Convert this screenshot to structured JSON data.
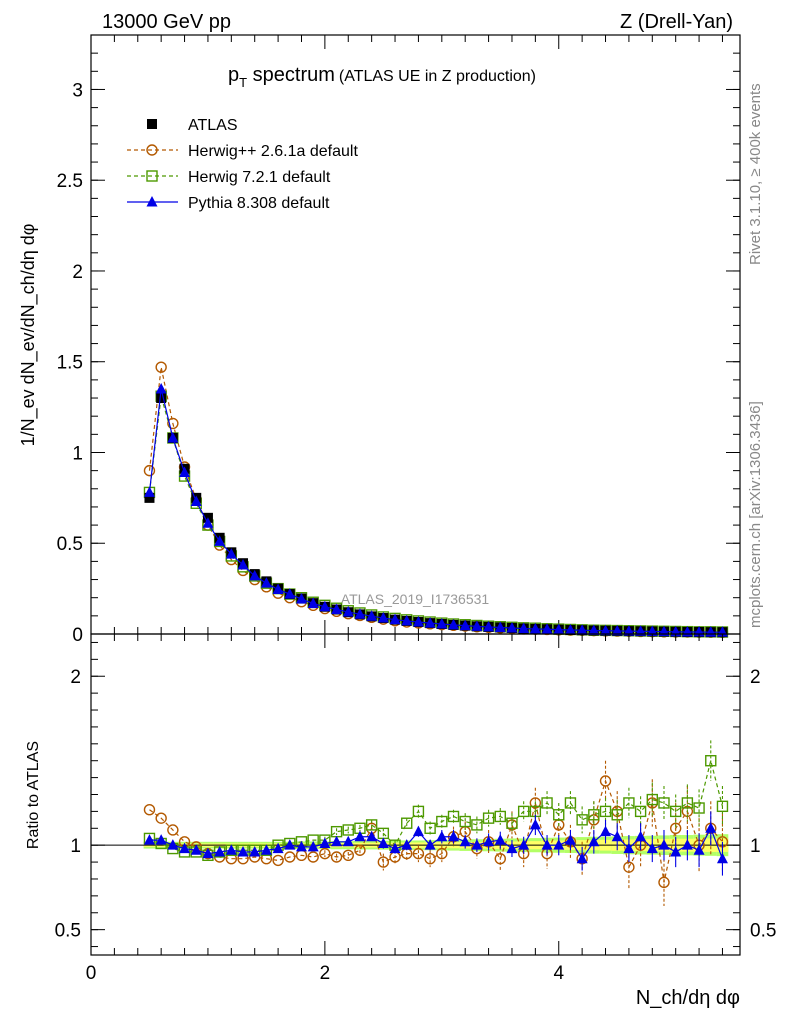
{
  "header": {
    "left": "13000 GeV pp",
    "right": "Z (Drell-Yan)"
  },
  "side": {
    "rivet": "Rivet 3.1.10, ≥ 400k events",
    "mcplots": "mcplots.cern.ch [arXiv:1306.3436]"
  },
  "colors": {
    "atlas": "#000000",
    "herwig_pp": "#b35900",
    "herwig7": "#4d9900",
    "pythia": "#0000e6",
    "band_inner": "#ffff66",
    "band_outer": "#b3ff66"
  },
  "chart_data": [
    {
      "panel": "main",
      "type": "line",
      "title_main": "p",
      "title_sub": "T",
      "title_rest": " spectrum",
      "title_small": "(ATLAS UE in Z production)",
      "ylabel": "1/N_ev dN_ev/dN_ch/dη dφ",
      "ylim": [
        0,
        3.3
      ],
      "yticks": [
        0,
        0.5,
        1,
        1.5,
        2,
        2.5,
        3
      ],
      "ytick_labels": [
        "0",
        "0.5",
        "1",
        "1.5",
        "2",
        "2.5",
        "3"
      ],
      "watermark": "ATLAS_2019_I1736531",
      "legend": [
        {
          "key": "atlas",
          "label": "ATLAS"
        },
        {
          "key": "herwig_pp",
          "label": "Herwig++ 2.6.1a default"
        },
        {
          "key": "herwig7",
          "label": "Herwig 7.2.1 default"
        },
        {
          "key": "pythia",
          "label": "Pythia 8.308 default"
        }
      ],
      "x": [
        0.5,
        0.6,
        0.7,
        0.8,
        0.9,
        1.0,
        1.1,
        1.2,
        1.3,
        1.4,
        1.5,
        1.6,
        1.7,
        1.8,
        1.9,
        2.0,
        2.1,
        2.2,
        2.3,
        2.4,
        2.5,
        2.6,
        2.7,
        2.8,
        2.9,
        3.0,
        3.1,
        3.2,
        3.3,
        3.4,
        3.5,
        3.6,
        3.7,
        3.8,
        3.9,
        4.0,
        4.1,
        4.2,
        4.3,
        4.4,
        4.5,
        4.6,
        4.7,
        4.8,
        4.9,
        5.0,
        5.1,
        5.2,
        5.3,
        5.4
      ],
      "series": [
        {
          "key": "atlas",
          "name": "ATLAS",
          "values": [
            0.75,
            1.3,
            1.08,
            0.91,
            0.75,
            0.64,
            0.53,
            0.45,
            0.39,
            0.33,
            0.29,
            0.25,
            0.22,
            0.195,
            0.17,
            0.15,
            0.135,
            0.12,
            0.108,
            0.097,
            0.088,
            0.079,
            0.072,
            0.066,
            0.06,
            0.055,
            0.05,
            0.046,
            0.042,
            0.039,
            0.036,
            0.033,
            0.03,
            0.028,
            0.026,
            0.024,
            0.022,
            0.021,
            0.019,
            0.018,
            0.017,
            0.016,
            0.015,
            0.014,
            0.013,
            0.012,
            0.011,
            0.011,
            0.01,
            0.01
          ]
        },
        {
          "key": "herwig_pp",
          "name": "Herwig++ 2.6.1a default",
          "values": [
            0.9,
            1.47,
            1.16,
            0.92,
            0.74,
            0.6,
            0.49,
            0.41,
            0.35,
            0.3,
            0.26,
            0.225,
            0.2,
            0.178,
            0.158,
            0.14,
            0.125,
            0.112,
            0.102,
            0.092,
            0.082,
            0.073,
            0.066,
            0.061,
            0.056,
            0.052,
            0.048,
            0.044,
            0.04,
            0.037,
            0.034,
            0.031,
            0.028,
            0.026,
            0.025,
            0.023,
            0.021,
            0.02,
            0.018,
            0.017,
            0.016,
            0.015,
            0.014,
            0.013,
            0.012,
            0.011,
            0.011,
            0.01,
            0.01,
            0.009
          ]
        },
        {
          "key": "herwig7",
          "name": "Herwig 7.2.1 default",
          "values": [
            0.78,
            1.31,
            1.08,
            0.87,
            0.72,
            0.6,
            0.51,
            0.43,
            0.37,
            0.32,
            0.28,
            0.25,
            0.22,
            0.2,
            0.175,
            0.158,
            0.142,
            0.128,
            0.116,
            0.105,
            0.094,
            0.086,
            0.078,
            0.072,
            0.066,
            0.06,
            0.055,
            0.051,
            0.047,
            0.043,
            0.04,
            0.037,
            0.034,
            0.032,
            0.029,
            0.027,
            0.025,
            0.023,
            0.021,
            0.02,
            0.019,
            0.018,
            0.017,
            0.016,
            0.015,
            0.014,
            0.013,
            0.012,
            0.012,
            0.011
          ]
        },
        {
          "key": "pythia",
          "name": "Pythia 8.308 default",
          "values": [
            0.78,
            1.35,
            1.08,
            0.89,
            0.73,
            0.61,
            0.51,
            0.44,
            0.38,
            0.32,
            0.28,
            0.245,
            0.22,
            0.193,
            0.168,
            0.15,
            0.135,
            0.121,
            0.109,
            0.098,
            0.088,
            0.079,
            0.072,
            0.066,
            0.06,
            0.055,
            0.05,
            0.046,
            0.042,
            0.039,
            0.036,
            0.033,
            0.03,
            0.028,
            0.026,
            0.024,
            0.022,
            0.021,
            0.019,
            0.018,
            0.017,
            0.016,
            0.015,
            0.014,
            0.013,
            0.012,
            0.011,
            0.011,
            0.01,
            0.01
          ]
        }
      ]
    },
    {
      "panel": "ratio",
      "type": "line",
      "ylabel": "Ratio to ATLAS",
      "xlabel": "N_ch/dη dφ",
      "xlim": [
        0,
        5.55
      ],
      "xticks": [
        0,
        2,
        4
      ],
      "xtick_labels": [
        "0",
        "2",
        "4"
      ],
      "ylim": [
        0.35,
        2.25
      ],
      "yticks": [
        0.5,
        1,
        2
      ],
      "ytick_labels": [
        "0.5",
        "1",
        "2"
      ],
      "x": [
        0.5,
        0.6,
        0.7,
        0.8,
        0.9,
        1.0,
        1.1,
        1.2,
        1.3,
        1.4,
        1.5,
        1.6,
        1.7,
        1.8,
        1.9,
        2.0,
        2.1,
        2.2,
        2.3,
        2.4,
        2.5,
        2.6,
        2.7,
        2.8,
        2.9,
        3.0,
        3.1,
        3.2,
        3.3,
        3.4,
        3.5,
        3.6,
        3.7,
        3.8,
        3.9,
        4.0,
        4.1,
        4.2,
        4.3,
        4.4,
        4.5,
        4.6,
        4.7,
        4.8,
        4.9,
        5.0,
        5.1,
        5.2,
        5.3,
        5.4
      ],
      "band_inner": [
        0.01,
        0.01,
        0.01,
        0.01,
        0.01,
        0.01,
        0.01,
        0.01,
        0.01,
        0.01,
        0.01,
        0.01,
        0.01,
        0.01,
        0.01,
        0.012,
        0.012,
        0.012,
        0.014,
        0.014,
        0.015,
        0.015,
        0.016,
        0.016,
        0.017,
        0.018,
        0.018,
        0.019,
        0.02,
        0.02,
        0.022,
        0.022,
        0.024,
        0.024,
        0.026,
        0.028,
        0.028,
        0.03,
        0.03,
        0.032,
        0.033,
        0.034,
        0.035,
        0.036,
        0.037,
        0.038,
        0.038,
        0.039,
        0.04,
        0.04
      ],
      "band_outer": [
        0.02,
        0.02,
        0.02,
        0.02,
        0.02,
        0.02,
        0.02,
        0.02,
        0.02,
        0.02,
        0.02,
        0.02,
        0.02,
        0.022,
        0.022,
        0.022,
        0.024,
        0.024,
        0.025,
        0.025,
        0.026,
        0.026,
        0.028,
        0.028,
        0.03,
        0.03,
        0.032,
        0.034,
        0.035,
        0.036,
        0.038,
        0.04,
        0.04,
        0.042,
        0.044,
        0.045,
        0.046,
        0.048,
        0.05,
        0.05,
        0.052,
        0.054,
        0.055,
        0.056,
        0.058,
        0.06,
        0.06,
        0.062,
        0.063,
        0.065
      ],
      "series": [
        {
          "key": "herwig_pp",
          "name": "Herwig++ 2.6.1a default",
          "values": [
            1.21,
            1.16,
            1.09,
            1.02,
            0.99,
            0.95,
            0.93,
            0.92,
            0.92,
            0.93,
            0.92,
            0.91,
            0.93,
            0.94,
            0.93,
            0.95,
            0.93,
            0.94,
            0.97,
            1.1,
            0.9,
            0.93,
            0.95,
            0.95,
            0.92,
            0.95,
            1.05,
            1.08,
            0.98,
            1.02,
            0.92,
            1.12,
            0.95,
            1.25,
            0.95,
            1.12,
            1.02,
            0.92,
            1.15,
            1.38,
            1.2,
            0.87,
            1.0,
            1.25,
            0.78,
            1.1,
            1.2,
            1.0,
            1.1,
            1.02
          ],
          "errors": [
            0.01,
            0.01,
            0.01,
            0.01,
            0.01,
            0.01,
            0.01,
            0.01,
            0.01,
            0.01,
            0.01,
            0.01,
            0.01,
            0.01,
            0.01,
            0.02,
            0.02,
            0.02,
            0.03,
            0.04,
            0.05,
            0.04,
            0.04,
            0.05,
            0.05,
            0.05,
            0.06,
            0.06,
            0.06,
            0.07,
            0.07,
            0.08,
            0.08,
            0.09,
            0.09,
            0.1,
            0.1,
            0.1,
            0.11,
            0.12,
            0.12,
            0.13,
            0.13,
            0.14,
            0.14,
            0.15,
            0.15,
            0.16,
            0.16,
            0.17
          ]
        },
        {
          "key": "herwig7",
          "name": "Herwig 7.2.1 default",
          "values": [
            1.04,
            1.01,
            0.98,
            0.96,
            0.96,
            0.94,
            0.96,
            0.97,
            0.97,
            0.97,
            0.97,
            1.0,
            1.01,
            1.02,
            1.03,
            1.03,
            1.08,
            1.09,
            1.1,
            1.12,
            1.07,
            1.0,
            1.13,
            1.2,
            1.1,
            1.14,
            1.17,
            1.14,
            1.12,
            1.16,
            1.17,
            1.13,
            1.2,
            1.2,
            1.25,
            1.18,
            1.25,
            1.15,
            1.18,
            1.2,
            1.18,
            1.25,
            1.2,
            1.27,
            1.25,
            1.2,
            1.25,
            1.22,
            1.5,
            1.23
          ],
          "errors": [
            0.01,
            0.01,
            0.01,
            0.01,
            0.01,
            0.01,
            0.01,
            0.01,
            0.01,
            0.01,
            0.01,
            0.01,
            0.01,
            0.01,
            0.01,
            0.02,
            0.02,
            0.02,
            0.02,
            0.03,
            0.03,
            0.03,
            0.03,
            0.04,
            0.04,
            0.04,
            0.04,
            0.05,
            0.05,
            0.05,
            0.05,
            0.06,
            0.06,
            0.06,
            0.07,
            0.07,
            0.07,
            0.08,
            0.08,
            0.08,
            0.09,
            0.09,
            0.09,
            0.1,
            0.1,
            0.1,
            0.11,
            0.11,
            0.12,
            0.12
          ]
        },
        {
          "key": "pythia",
          "name": "Pythia 8.308 default",
          "values": [
            1.03,
            1.03,
            1.0,
            0.98,
            0.97,
            0.95,
            0.96,
            0.97,
            0.96,
            0.96,
            0.97,
            0.98,
            1.0,
            0.99,
            0.99,
            1.01,
            1.02,
            1.02,
            1.05,
            1.05,
            1.01,
            0.98,
            1.0,
            1.08,
            1.0,
            1.05,
            1.05,
            1.02,
            1.0,
            1.02,
            1.03,
            0.98,
            1.0,
            1.12,
            1.0,
            1.0,
            1.03,
            0.92,
            1.02,
            1.08,
            1.05,
            0.98,
            1.05,
            0.98,
            1.0,
            0.96,
            1.0,
            0.97,
            1.1,
            0.92
          ],
          "errors": [
            0.01,
            0.01,
            0.01,
            0.01,
            0.01,
            0.01,
            0.01,
            0.01,
            0.01,
            0.01,
            0.01,
            0.01,
            0.01,
            0.01,
            0.01,
            0.02,
            0.02,
            0.02,
            0.02,
            0.02,
            0.03,
            0.03,
            0.03,
            0.03,
            0.03,
            0.04,
            0.04,
            0.04,
            0.04,
            0.05,
            0.05,
            0.05,
            0.05,
            0.06,
            0.06,
            0.06,
            0.06,
            0.07,
            0.07,
            0.07,
            0.08,
            0.08,
            0.08,
            0.08,
            0.09,
            0.09,
            0.09,
            0.1,
            0.1,
            0.1
          ]
        }
      ]
    }
  ]
}
